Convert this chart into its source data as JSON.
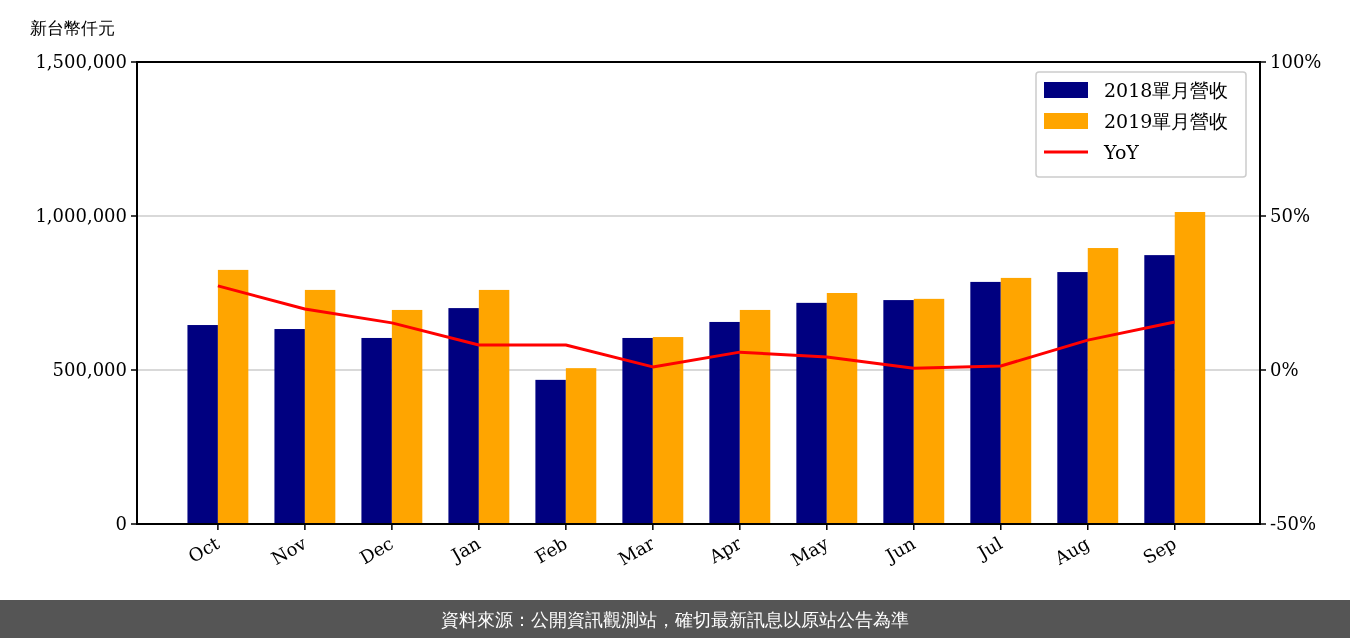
{
  "chart_data": {
    "type": "bar",
    "ylabel": "新台幣仟元",
    "categories": [
      "Oct",
      "Nov",
      "Dec",
      "Jan",
      "Feb",
      "Mar",
      "Apr",
      "May",
      "Jun",
      "Jul",
      "Aug",
      "Sep"
    ],
    "series": [
      {
        "name": "2018單月營收",
        "color": "#000080",
        "values": [
          646000,
          633000,
          604000,
          701000,
          468000,
          604000,
          656000,
          718000,
          727000,
          786000,
          818000,
          873000
        ]
      },
      {
        "name": "2019單月營收",
        "color": "#ffa500",
        "values": [
          825000,
          760000,
          695000,
          760000,
          506000,
          607000,
          695000,
          750000,
          731000,
          799000,
          896000,
          1013000
        ]
      },
      {
        "name": "YoY",
        "type": "line",
        "axis": "y2",
        "color": "#ff0000",
        "values": [
          27.3,
          19.8,
          15.3,
          8.1,
          8.1,
          1.0,
          5.8,
          4.2,
          0.6,
          1.3,
          9.7,
          15.6
        ]
      }
    ],
    "ylim": [
      0,
      1500000
    ],
    "yticks": [
      0,
      {
        "value": 500000,
        "label": "500,000"
      },
      {
        "value": 1000000,
        "label": "1,000,000"
      },
      {
        "value": 1500000,
        "label": "1,500,000"
      }
    ],
    "y2lim": [
      -50,
      100
    ],
    "y2ticks": [
      {
        "value": -50,
        "label": "-50%"
      },
      {
        "value": 0,
        "label": "0%"
      },
      {
        "value": 50,
        "label": "50%"
      },
      {
        "value": 100,
        "label": "100%"
      }
    ],
    "grid": "y",
    "legend": "top right",
    "annotations": [
      "資料來源：公開資訊觀測站，確切最新訊息以原站公告為準"
    ]
  }
}
